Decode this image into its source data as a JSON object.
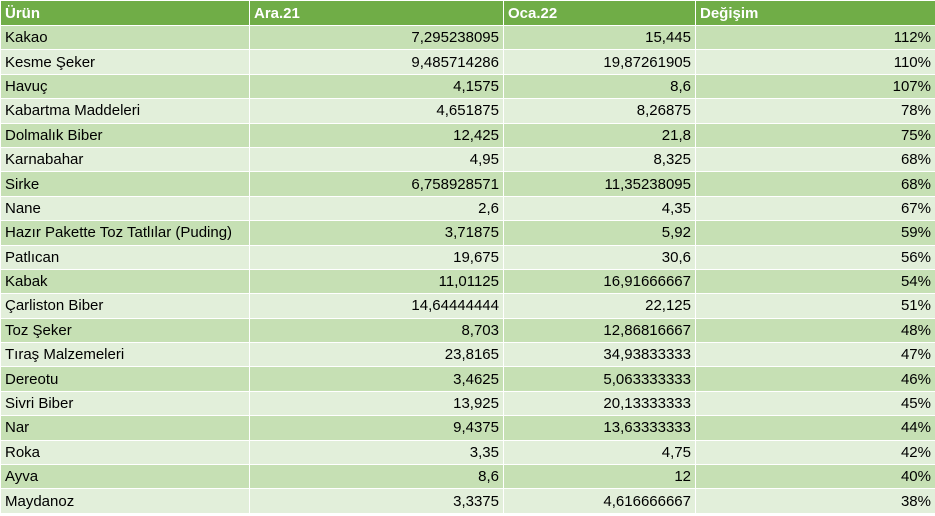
{
  "table": {
    "header": [
      "Ürün",
      "Ara.21",
      "Oca.22",
      "Değişim"
    ],
    "rows": [
      [
        "Kakao",
        "7,295238095",
        "15,445",
        "112%"
      ],
      [
        "Kesme Şeker",
        "9,485714286",
        "19,87261905",
        "110%"
      ],
      [
        "Havuç",
        "4,1575",
        "8,6",
        "107%"
      ],
      [
        "Kabartma Maddeleri",
        "4,651875",
        "8,26875",
        "78%"
      ],
      [
        "Dolmalık Biber",
        "12,425",
        "21,8",
        "75%"
      ],
      [
        "Karnabahar",
        "4,95",
        "8,325",
        "68%"
      ],
      [
        "Sirke",
        "6,758928571",
        "11,35238095",
        "68%"
      ],
      [
        "Nane",
        "2,6",
        "4,35",
        "67%"
      ],
      [
        "Hazır Pakette Toz Tatlılar (Puding)",
        "3,71875",
        "5,92",
        "59%"
      ],
      [
        "Patlıcan",
        "19,675",
        "30,6",
        "56%"
      ],
      [
        "Kabak",
        "11,01125",
        "16,91666667",
        "54%"
      ],
      [
        "Çarliston Biber",
        "14,64444444",
        "22,125",
        "51%"
      ],
      [
        "Toz Şeker",
        "8,703",
        "12,86816667",
        "48%"
      ],
      [
        "Tıraş Malzemeleri",
        "23,8165",
        "34,93833333",
        "47%"
      ],
      [
        "Dereotu",
        "3,4625",
        "5,063333333",
        "46%"
      ],
      [
        "Sivri Biber",
        "13,925",
        "20,13333333",
        "45%"
      ],
      [
        "Nar",
        "9,4375",
        "13,63333333",
        "44%"
      ],
      [
        "Roka",
        "3,35",
        "4,75",
        "42%"
      ],
      [
        "Ayva",
        "8,6",
        "12",
        "40%"
      ],
      [
        "Maydanoz",
        "3,3375",
        "4,616666667",
        "38%"
      ]
    ]
  }
}
